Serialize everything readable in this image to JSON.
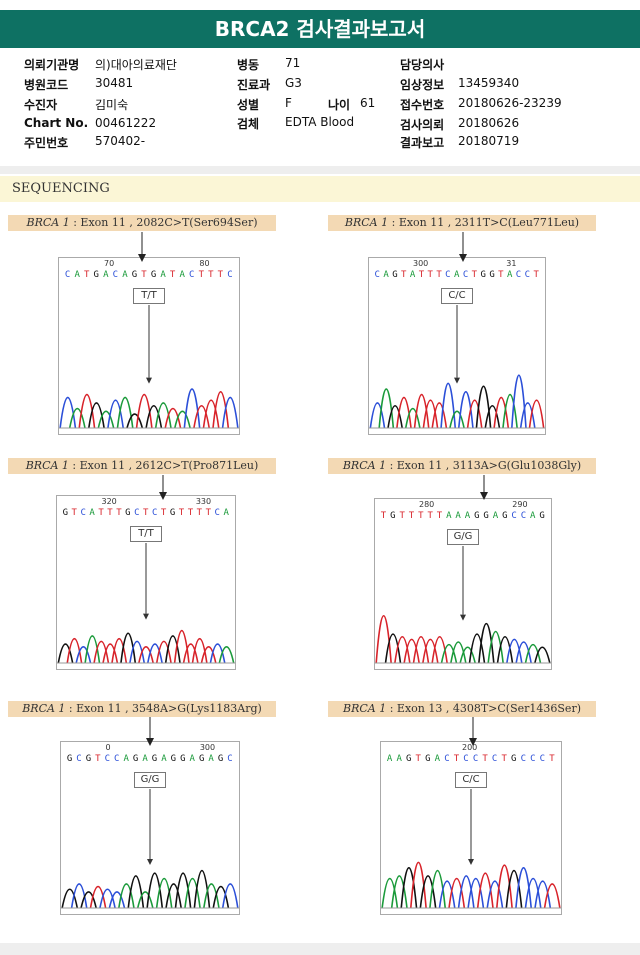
{
  "report": {
    "title": "BRCA2 검사결과보고서"
  },
  "patient_info": {
    "col1": [
      {
        "label": "의뢰기관명",
        "value": "의)대아의료재단"
      },
      {
        "label": "병원코드",
        "value": "30481"
      },
      {
        "label": "수진자",
        "value": "김미숙"
      },
      {
        "label": "Chart No.",
        "value": "00461222"
      },
      {
        "label": "주민번호",
        "value": "570402-"
      }
    ],
    "col2": [
      {
        "label": "병동",
        "value": "71"
      },
      {
        "label": "진료과",
        "value": "G3"
      },
      {
        "label": "성별",
        "value": "F"
      },
      {
        "label": "검체",
        "value": "EDTA Blood"
      }
    ],
    "age": {
      "label": "나이",
      "value": "61"
    },
    "col3": [
      {
        "label": "담당의사",
        "value": ""
      },
      {
        "label": "임상정보",
        "value": "13459340"
      },
      {
        "label": "접수번호",
        "value": "20180626-23239"
      },
      {
        "label": "검사의뢰",
        "value": "20180626"
      },
      {
        "label": "결과보고",
        "value": "20180719"
      }
    ]
  },
  "sequencing": {
    "section_title": "SEQUENCING",
    "panels": [
      {
        "gene": "BRCA 1",
        "variant": " : Exon 11 , 2082C>T(Ser694Ser)",
        "genotype": "T/T",
        "positions": [
          "70",
          "80"
        ],
        "sequence": "CATGACAGTGATACTTTC",
        "heights": [
          0.55,
          0.35,
          0.6,
          0.45,
          0.3,
          0.5,
          0.55,
          0.25,
          0.6,
          0.4,
          0.45,
          0.35,
          0.3,
          0.7,
          0.4,
          0.5,
          0.65,
          0.55
        ]
      },
      {
        "gene": "BRCA 1",
        "variant": " : Exon 11 , 2311T>C(Leu771Leu)",
        "genotype": "C/C",
        "positions": [
          "300",
          "31"
        ],
        "sequence": "CAGTATTTCACTGGTACCT",
        "heights": [
          0.45,
          0.7,
          0.4,
          0.55,
          0.35,
          0.6,
          0.5,
          0.45,
          0.8,
          0.3,
          0.65,
          0.5,
          0.75,
          0.4,
          0.55,
          0.6,
          0.95,
          0.45,
          0.5
        ]
      },
      {
        "gene": "BRCA 1",
        "variant": " : Exon 11 , 2612C>T(Pro871Leu)",
        "genotype": "T/T",
        "positions": [
          "320",
          "330"
        ],
        "sequence": "GTCATTTGCTCTGTTTTCA",
        "heights": [
          0.35,
          0.45,
          0.3,
          0.5,
          0.4,
          0.35,
          0.45,
          0.55,
          0.4,
          0.3,
          0.35,
          0.4,
          0.5,
          0.6,
          0.35,
          0.45,
          0.3,
          0.35,
          0.3
        ]
      },
      {
        "gene": "BRCA 1",
        "variant": " : Exon 11 , 3113A>G(Glu1038Gly)",
        "genotype": "G/G",
        "positions": [
          "280",
          "290"
        ],
        "sequence": "TGTTTTTAAAGGAGCCAG",
        "heights": [
          0.9,
          0.55,
          0.5,
          0.45,
          0.5,
          0.45,
          0.5,
          0.35,
          0.4,
          0.3,
          0.55,
          0.75,
          0.6,
          0.5,
          0.45,
          0.4,
          0.35,
          0.3
        ]
      },
      {
        "gene": "BRCA 1",
        "variant": " : Exon 11 , 3548A>G(Lys1183Arg)",
        "genotype": "G/G",
        "positions": [
          "0",
          "300"
        ],
        "sequence": "GCGTCCAGAGAGGAGAGC",
        "heights": [
          0.35,
          0.45,
          0.3,
          0.4,
          0.35,
          0.3,
          0.45,
          0.6,
          0.3,
          0.65,
          0.55,
          0.45,
          0.65,
          0.55,
          0.7,
          0.45,
          0.4,
          0.45
        ]
      },
      {
        "gene": "BRCA 1",
        "variant": " : Exon 13 , 4308T>C(Ser1436Ser)",
        "genotype": "C/C",
        "positions": [
          "200"
        ],
        "sequence": "AAGTGACTCCTCTGCCCT",
        "heights": [
          0.55,
          0.6,
          0.75,
          0.85,
          0.6,
          0.7,
          0.5,
          0.55,
          0.6,
          0.55,
          0.65,
          0.5,
          0.8,
          0.7,
          0.75,
          0.55,
          0.5,
          0.45
        ]
      }
    ]
  },
  "colors": {
    "header_bg": "#0e7163",
    "A": "#1a9a3a",
    "C": "#2b4fd8",
    "G": "#111111",
    "T": "#d8232a"
  }
}
